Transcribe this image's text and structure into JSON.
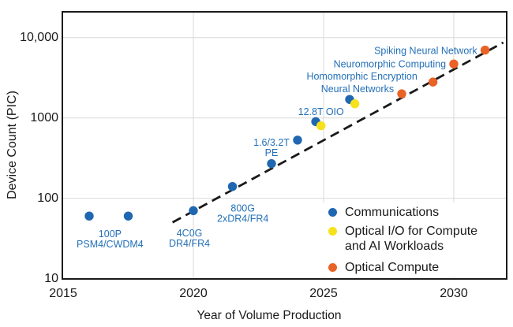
{
  "figure": {
    "background": "#ffffff"
  },
  "chart_data": {
    "type": "scatter",
    "title": "",
    "xlabel": "Year of Volume Production",
    "ylabel": "Device Count (PIC)",
    "x_axis": {
      "min": 2015,
      "max": 2032,
      "ticks": [
        {
          "value": 2015,
          "label": "2015"
        },
        {
          "value": 2020,
          "label": "2020"
        },
        {
          "value": 2025,
          "label": "2025"
        },
        {
          "value": 2030,
          "label": "2030"
        }
      ],
      "gridlines": [
        2020,
        2025,
        2030
      ]
    },
    "y_axis": {
      "scale": "log",
      "min": 10,
      "max": 21000,
      "ticks": [
        {
          "value": 10,
          "label": "10"
        },
        {
          "value": 100,
          "label": "100"
        },
        {
          "value": 1000,
          "label": "1000"
        },
        {
          "value": 10000,
          "label": "10,000"
        }
      ],
      "gridlines": [
        100,
        1000,
        10000
      ]
    },
    "series": [
      {
        "name": "Communications",
        "color": "#1f68b1",
        "points": [
          {
            "year": 2016,
            "count": 60
          },
          {
            "year": 2017.5,
            "count": 60
          },
          {
            "year": 2020,
            "count": 70
          },
          {
            "year": 2021.5,
            "count": 140
          },
          {
            "year": 2023,
            "count": 270
          },
          {
            "year": 2024,
            "count": 530
          },
          {
            "year": 2024.7,
            "count": 900
          },
          {
            "year": 2026,
            "count": 1700
          }
        ]
      },
      {
        "name": "Optical I/O for Compute and AI Workloads",
        "color": "#f6e11d",
        "points": [
          {
            "year": 2024.9,
            "count": 800
          },
          {
            "year": 2026.2,
            "count": 1500
          }
        ]
      },
      {
        "name": "Optical Compute",
        "color": "#e96326",
        "points": [
          {
            "year": 2028,
            "count": 2000
          },
          {
            "year": 2029.2,
            "count": 2800
          },
          {
            "year": 2030,
            "count": 4700
          },
          {
            "year": 2031.2,
            "count": 7000
          }
        ]
      }
    ],
    "trendline": {
      "style": "dashed",
      "color": "#1a1a1a",
      "from": {
        "year": 2019.2,
        "count": 50
      },
      "to": {
        "year": 2031.9,
        "count": 8700
      }
    },
    "annotation_color": "#2470b8",
    "annotations": [
      {
        "lines": [
          "100P",
          "PSM4/CWDM4"
        ],
        "year": 2016.8,
        "count": 31,
        "align": "center"
      },
      {
        "lines": [
          "4C0G",
          "DR4/FR4"
        ],
        "year": 2019.85,
        "count": 32,
        "align": "center"
      },
      {
        "lines": [
          "800G",
          "2xDR4/FR4"
        ],
        "year": 2021.9,
        "count": 65,
        "align": "center"
      },
      {
        "lines": [
          "1.6/3.2T",
          "PE"
        ],
        "year": 2023.0,
        "count": 430,
        "align": "center"
      },
      {
        "lines": [
          "12.8T OIO"
        ],
        "year": 2024.9,
        "count": 1200,
        "align": "center"
      },
      {
        "lines": [
          "Neural Networks"
        ],
        "year": 2027.7,
        "count": 2300,
        "align": "right"
      },
      {
        "lines": [
          "Homomorphic Encryption"
        ],
        "year": 2028.6,
        "count": 3300,
        "align": "right"
      },
      {
        "lines": [
          "Neuromorphic Computing"
        ],
        "year": 2029.7,
        "count": 4700,
        "align": "right"
      },
      {
        "lines": [
          "Spiking Neural Network"
        ],
        "year": 2030.9,
        "count": 6900,
        "align": "right"
      }
    ],
    "legend": {
      "position": "bottom-right",
      "items": [
        {
          "label_lines": [
            "Communications"
          ],
          "color": "#1f68b1"
        },
        {
          "label_lines": [
            "Optical I/O for Compute",
            "and AI Workloads"
          ],
          "color": "#f6e11d"
        },
        {
          "label_lines": [
            "Optical Compute"
          ],
          "color": "#e96326"
        }
      ]
    }
  }
}
